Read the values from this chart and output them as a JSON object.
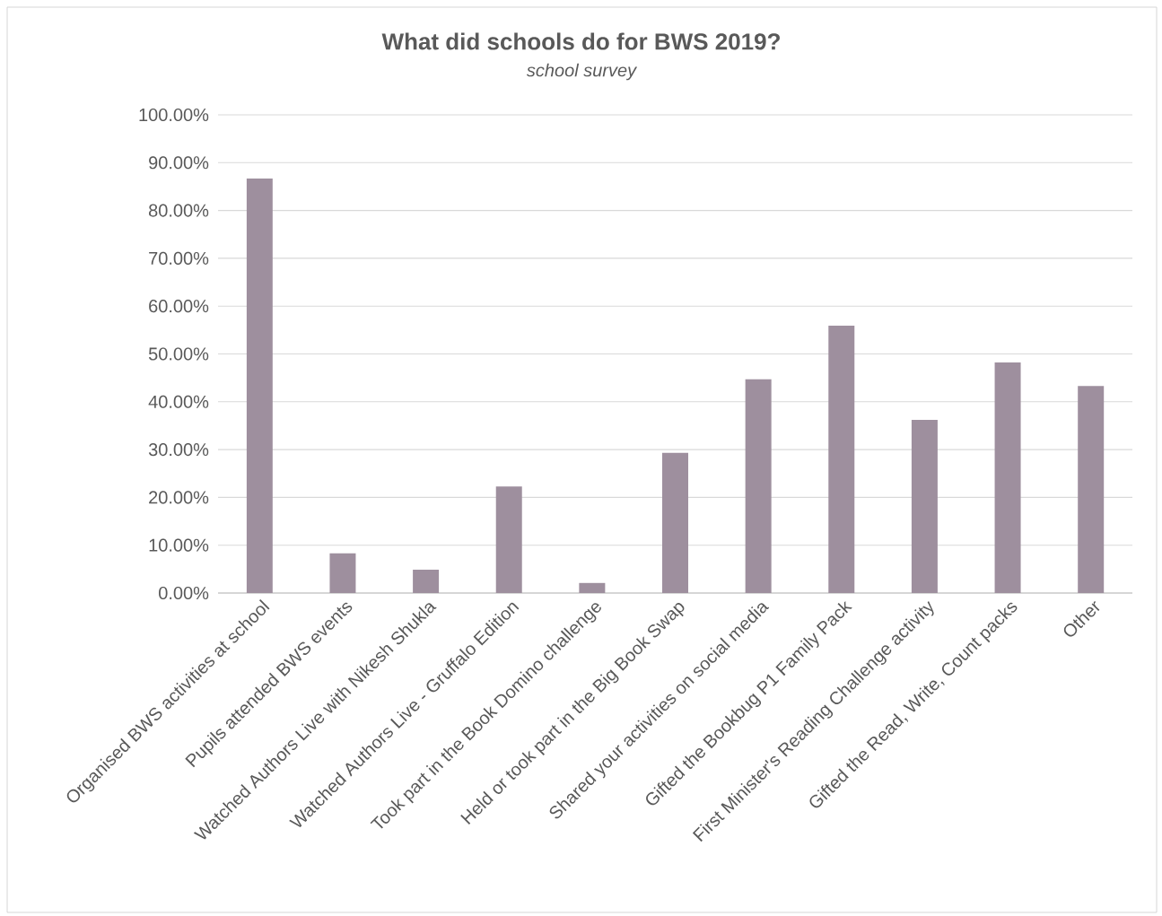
{
  "chart_data": {
    "type": "bar",
    "title": "What did schools do for BWS 2019?",
    "subtitle": "school survey",
    "categories": [
      "Organised BWS activities at school",
      "Pupils attended BWS events",
      "Watched Authors Live with Nikesh Shukla",
      "Watched Authors Live - Gruffalo Edition",
      "Took part in the Book Domino challenge",
      "Held or took part in the Big Book Swap",
      "Shared your activities on social media",
      "Gifted the Bookbug P1 Family Pack",
      "First Minister's Reading Challenge activity",
      "Gifted the Read, Write, Count packs",
      "Other"
    ],
    "values": [
      86.7,
      8.3,
      4.9,
      22.3,
      2.1,
      29.3,
      44.7,
      55.9,
      36.2,
      48.2,
      43.3
    ],
    "color": "#9e8f9e",
    "ylim": [
      0,
      100
    ],
    "yticks": [
      {
        "value": 0,
        "label": "0.00%"
      },
      {
        "value": 10,
        "label": "10.00%"
      },
      {
        "value": 20,
        "label": "20.00%"
      },
      {
        "value": 30,
        "label": "30.00%"
      },
      {
        "value": 40,
        "label": "40.00%"
      },
      {
        "value": 50,
        "label": "50.00%"
      },
      {
        "value": 60,
        "label": "60.00%"
      },
      {
        "value": 70,
        "label": "70.00%"
      },
      {
        "value": 80,
        "label": "80.00%"
      },
      {
        "value": 90,
        "label": "90.00%"
      },
      {
        "value": 100,
        "label": "100.00%"
      }
    ],
    "grid": "y"
  }
}
